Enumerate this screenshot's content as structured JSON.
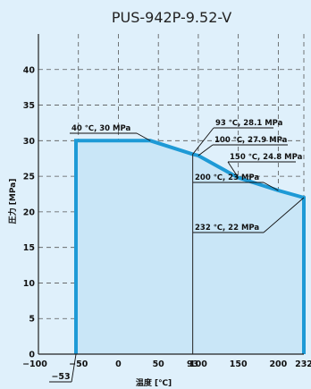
{
  "chart_data": {
    "type": "area",
    "title": "PUS-942P-9.52-V",
    "xlabel": "温度 [℃]",
    "ylabel": "圧力 [MPa]",
    "xlim": [
      -100,
      232
    ],
    "ylim": [
      0,
      45
    ],
    "xticks": [
      -100,
      -50,
      0,
      50,
      93,
      100,
      150,
      200,
      232
    ],
    "xtick_labels": [
      "−100",
      "−50",
      "0",
      "50",
      "93",
      "100",
      "150",
      "200",
      "232"
    ],
    "yticks": [
      0,
      5,
      10,
      15,
      20,
      25,
      30,
      35,
      40
    ],
    "grid": true,
    "extra_xtick": {
      "value": -53,
      "label": "−53"
    },
    "series": [
      {
        "values_x": [
          -53,
          -53,
          40,
          93,
          100,
          150,
          200,
          232,
          232
        ],
        "values_y": [
          0,
          30,
          30,
          28.1,
          27.9,
          24.8,
          23,
          22,
          0
        ],
        "color": "#1e9ad6",
        "fill": "#c9e6f7"
      }
    ],
    "annotations": [
      {
        "text": "40 ℃, 30 MPa",
        "x": 40,
        "y": 30
      },
      {
        "text": "93 ℃, 28.1 MPa",
        "x": 93,
        "y": 28.1
      },
      {
        "text": "100 ℃, 27.9 MPa",
        "x": 100,
        "y": 27.9
      },
      {
        "text": "150 ℃, 24.8 MPa",
        "x": 150,
        "y": 24.8
      },
      {
        "text": "200 ℃, 23 MPa",
        "x": 200,
        "y": 23
      },
      {
        "text": "232 ℃, 22 MPa",
        "x": 232,
        "y": 22
      }
    ]
  }
}
